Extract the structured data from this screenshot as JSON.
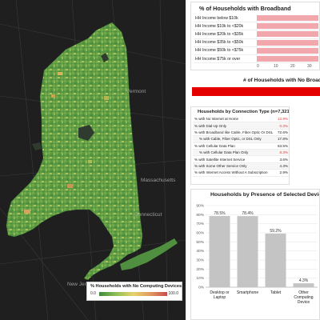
{
  "map": {
    "places": [
      "Vermont",
      "Massachusetts",
      "Connecticut",
      "New Jersey"
    ],
    "legend": {
      "title": "% Households with No Computing Devices",
      "min": "0.0",
      "max": "100.0"
    }
  },
  "income_panel": {
    "title": "% of Households with Broadband",
    "rows": [
      {
        "label": "HH Income below $10k",
        "value": 100
      },
      {
        "label": "HH Income $10k to <$20k",
        "value": 100
      },
      {
        "label": "HH Income $20k to <$35k",
        "value": 100
      },
      {
        "label": "HH Income $35k to <$50k",
        "value": 100
      },
      {
        "label": "HH Income $50k to <$75k",
        "value": 100
      },
      {
        "label": "HH Income $75k or over",
        "value": 100
      }
    ],
    "ticks": [
      "0",
      "10",
      "20",
      "30"
    ]
  },
  "no_broadband_panel": {
    "title": "# of Households with No Broadband",
    "bar_color": "#e50000"
  },
  "connection_panel": {
    "title": "Households by Connection Type (n=7,321,374)",
    "rows": [
      {
        "label": "% with No Internet at Home",
        "value": "13.9%",
        "highlight": true
      },
      {
        "label": "% with Dial-Up Only",
        "value": "0.3%",
        "highlight": true
      },
      {
        "label": "% with Broadband like Cable, Fiber Optic Or DSL",
        "value": "72.6%",
        "highlight": false
      },
      {
        "label": "% with Cable, Fiber Optic, or DSL Only",
        "value": "17.8%",
        "highlight": false,
        "indent": true
      },
      {
        "label": "% with Cellular Data Plan",
        "value": "63.5%",
        "highlight": false
      },
      {
        "label": "% with Cellular Data Plan Only",
        "value": "8.3%",
        "highlight": true,
        "indent": true
      },
      {
        "label": "% with Satellite Internet Service",
        "value": "3.6%",
        "highlight": false
      },
      {
        "label": "% with Some Other Service Only",
        "value": "4.3%",
        "highlight": false
      },
      {
        "label": "% with Internet Access Without A Subscription",
        "value": "2.9%",
        "highlight": false
      }
    ]
  },
  "devices_panel": {
    "title": "Households by Presence of Selected Devices",
    "chart_data": {
      "type": "bar",
      "title": "Households by Presence of Selected Devices",
      "categories": [
        "Desktop or Laptop",
        "Smartphone",
        "Tablet",
        "Other Computing Device"
      ],
      "values": [
        78.5,
        78.4,
        59.2,
        4.3
      ],
      "labels": [
        "78.5%",
        "78.4%",
        "59.2%",
        "4.3%"
      ],
      "ylim": [
        0,
        90
      ],
      "ticks": [
        "0%",
        "10%",
        "20%",
        "30%",
        "40%",
        "50%",
        "60%",
        "70%",
        "80%",
        "90%"
      ],
      "bar_color": "#c4c4c4",
      "grid": true
    }
  }
}
